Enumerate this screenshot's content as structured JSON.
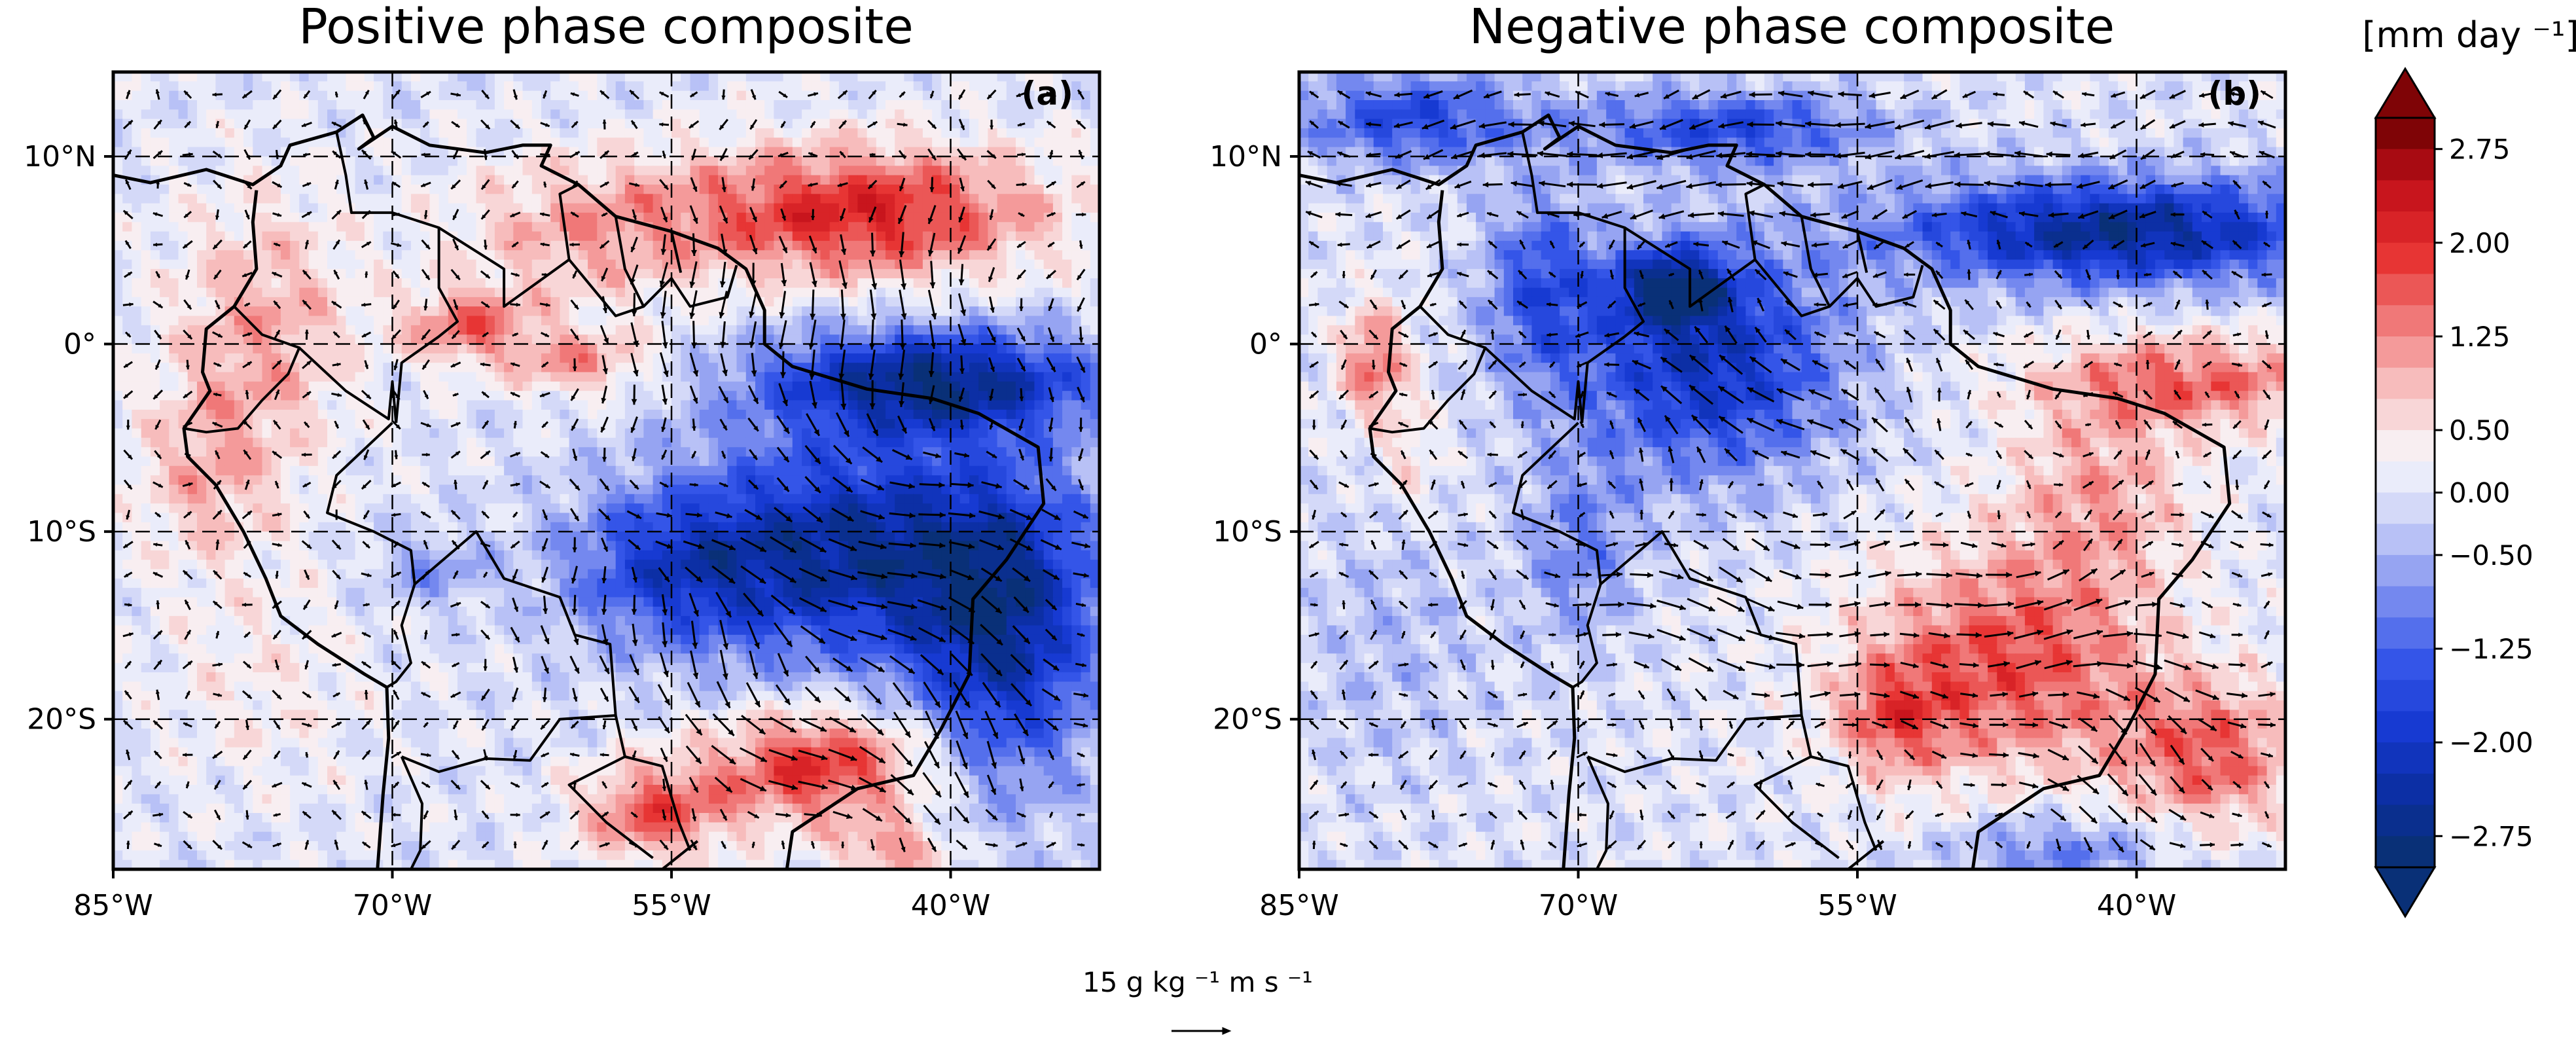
{
  "chart_data": [
    {
      "type": "heatmap",
      "title": "Positive phase composite",
      "panel_label": "(a)",
      "xlim": [
        -85,
        -32
      ],
      "ylim": [
        -28,
        14.5
      ],
      "x_ticks": [
        -85,
        -70,
        -55,
        -40
      ],
      "x_tick_labels": [
        "85°W",
        "70°W",
        "55°W",
        "40°W"
      ],
      "y_ticks": [
        10,
        0,
        -10,
        -20
      ],
      "y_tick_labels": [
        "10°N",
        "0°",
        "10°S",
        "20°S"
      ],
      "grid": true,
      "field_blobs": [
        {
          "lon": -45,
          "lat": 7,
          "value": 2.1,
          "rlon": 10,
          "rlat": 3.5
        },
        {
          "lon": -60,
          "lat": 6,
          "value": 0.9,
          "rlon": 7,
          "rlat": 4
        },
        {
          "lon": -66,
          "lat": 1,
          "value": 1.4,
          "rlon": 3.5,
          "rlat": 2
        },
        {
          "lon": -60,
          "lat": -1,
          "value": 1.1,
          "rlon": 4,
          "rlat": 1.8
        },
        {
          "lon": -77,
          "lat": 1,
          "value": 1.0,
          "rlon": 5,
          "rlat": 7
        },
        {
          "lon": -80,
          "lat": -7,
          "value": 0.8,
          "rlon": 4,
          "rlat": 5
        },
        {
          "lon": -41,
          "lat": -2,
          "value": -2.6,
          "rlon": 9,
          "rlat": 2.8
        },
        {
          "lon": -45,
          "lat": -11,
          "value": -2.4,
          "rlon": 10,
          "rlat": 6
        },
        {
          "lon": -37,
          "lat": -16,
          "value": -2.0,
          "rlon": 5,
          "rlat": 8
        },
        {
          "lon": -55,
          "lat": -12,
          "value": -1.3,
          "rlon": 6,
          "rlat": 4
        },
        {
          "lon": -68,
          "lat": -12,
          "value": -0.7,
          "rlon": 3,
          "rlat": 2
        },
        {
          "lon": -47,
          "lat": -22.5,
          "value": 2.0,
          "rlon": 6,
          "rlat": 3
        },
        {
          "lon": -56,
          "lat": -25,
          "value": 1.6,
          "rlon": 4,
          "rlat": 2.5
        },
        {
          "lon": -43,
          "lat": -27,
          "value": 1.2,
          "rlon": 3,
          "rlat": 1.5
        },
        {
          "lon": -77,
          "lat": -18,
          "value": 0.4,
          "rlon": 6,
          "rlat": 6
        }
      ],
      "flux_blobs": [
        {
          "lon": -47,
          "lat": 1,
          "u": 0.0,
          "v": -1.0,
          "rlon": 12,
          "rlat": 6
        },
        {
          "lon": -44,
          "lat": -12,
          "u": 1.0,
          "v": -0.2,
          "rlon": 10,
          "rlat": 6
        },
        {
          "lon": -40,
          "lat": -20,
          "u": 0.4,
          "v": -0.9,
          "rlon": 6,
          "rlat": 5
        },
        {
          "lon": -48,
          "lat": -22.5,
          "u": 1.0,
          "v": -0.3,
          "rlon": 6,
          "rlat": 3
        },
        {
          "lon": -55,
          "lat": -16,
          "u": 0.0,
          "v": -0.8,
          "rlon": 7,
          "rlat": 5
        }
      ]
    },
    {
      "type": "heatmap",
      "title": "Negative phase composite",
      "panel_label": "(b)",
      "xlim": [
        -85,
        -32
      ],
      "ylim": [
        -28,
        14.5
      ],
      "x_ticks": [
        -85,
        -70,
        -55,
        -40
      ],
      "x_tick_labels": [
        "85°W",
        "70°W",
        "55°W",
        "40°W"
      ],
      "y_ticks": [
        10,
        0,
        -10,
        -20
      ],
      "y_tick_labels": [
        "10°N",
        "0°",
        "10°S",
        "20°S"
      ],
      "grid": true,
      "field_blobs": [
        {
          "lon": -41,
          "lat": 6,
          "value": -2.6,
          "rlon": 12,
          "rlat": 2.8
        },
        {
          "lon": -62,
          "lat": 11.5,
          "value": -1.6,
          "rlon": 8,
          "rlat": 2
        },
        {
          "lon": -79,
          "lat": 12,
          "value": -1.6,
          "rlon": 6,
          "rlat": 2.5
        },
        {
          "lon": -63,
          "lat": -1,
          "value": -2.1,
          "rlon": 7,
          "rlat": 6
        },
        {
          "lon": -65,
          "lat": 3,
          "value": -2.2,
          "rlon": 3,
          "rlat": 2
        },
        {
          "lon": -72,
          "lat": 3,
          "value": -1.4,
          "rlon": 3,
          "rlat": 5
        },
        {
          "lon": -70,
          "lat": -11,
          "value": -0.9,
          "rlon": 3,
          "rlat": 5
        },
        {
          "lon": -81,
          "lat": -1,
          "value": 1.5,
          "rlon": 1.8,
          "rlat": 3
        },
        {
          "lon": -79,
          "lat": -6,
          "value": 0.6,
          "rlon": 1.5,
          "rlat": 3
        },
        {
          "lon": -37,
          "lat": -2,
          "value": 1.5,
          "rlon": 8,
          "rlat": 2.5
        },
        {
          "lon": -42,
          "lat": -8,
          "value": 1.0,
          "rlon": 5,
          "rlat": 5
        },
        {
          "lon": -47,
          "lat": -17,
          "value": 1.7,
          "rlon": 8,
          "rlat": 6
        },
        {
          "lon": -36,
          "lat": -22,
          "value": 1.5,
          "rlon": 5,
          "rlat": 4
        },
        {
          "lon": -53,
          "lat": -20,
          "value": 1.2,
          "rlon": 3,
          "rlat": 3
        },
        {
          "lon": -44,
          "lat": -27,
          "value": -1.0,
          "rlon": 6,
          "rlat": 2
        },
        {
          "lon": -80,
          "lat": -16,
          "value": -0.4,
          "rlon": 5,
          "rlat": 7
        }
      ],
      "flux_blobs": [
        {
          "lon": -60,
          "lat": 10,
          "u": -1.0,
          "v": -0.1,
          "rlon": 25,
          "rlat": 4
        },
        {
          "lon": -62,
          "lat": -14,
          "u": 0.9,
          "v": -0.3,
          "rlon": 8,
          "rlat": 5
        },
        {
          "lon": -45,
          "lat": -15,
          "u": 0.8,
          "v": 0.2,
          "rlon": 10,
          "rlat": 5
        },
        {
          "lon": -60,
          "lat": -3,
          "u": -0.7,
          "v": 0.5,
          "rlon": 8,
          "rlat": 5
        },
        {
          "lon": -40,
          "lat": -22,
          "u": 0.5,
          "v": -0.5,
          "rlon": 8,
          "rlat": 5
        }
      ]
    }
  ],
  "colorbar": {
    "unit_label": "[mm day ⁻¹]",
    "ticks": [
      2.75,
      2.0,
      1.25,
      0.5,
      0.0,
      -0.5,
      -1.25,
      -2.0,
      -2.75
    ],
    "tick_labels": [
      "2.75",
      "2.00",
      "1.25",
      "0.50",
      "0.00",
      "−0.50",
      "−1.25",
      "−2.00",
      "−2.75"
    ],
    "range": [
      -3.0,
      3.0
    ],
    "levels": 24,
    "colors": [
      "#08306b",
      "#0b2e9e",
      "#1538d0",
      "#3556e8",
      "#7b8ef0",
      "#c6cdf7",
      "#f8f8fb",
      "#f8c4c4",
      "#f07a7a",
      "#e6302f",
      "#c3101a",
      "#6b0000"
    ]
  },
  "quiver_key": {
    "label": "15 g kg ⁻¹ m s ⁻¹",
    "magnitude": 15
  },
  "coastline_color": "#000000"
}
